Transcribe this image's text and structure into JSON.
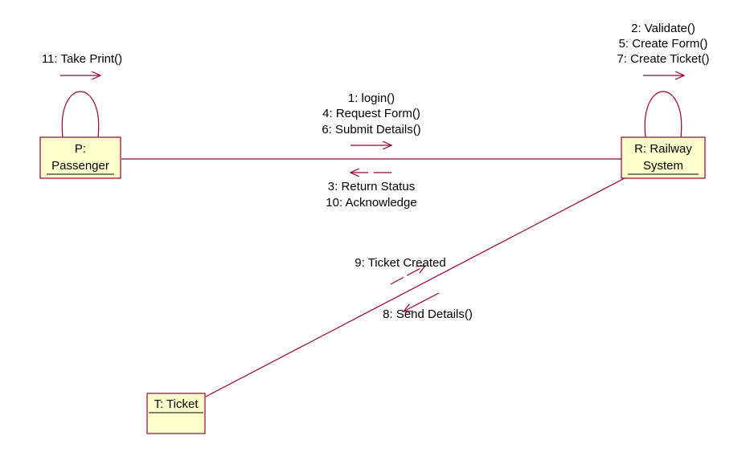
{
  "diagram": {
    "colors": {
      "line": "#990033",
      "object_fill": "#ffffcc",
      "text": "#000000",
      "background": "#ffffff"
    },
    "objects": {
      "passenger": {
        "line1": "P:",
        "line2": "Passenger"
      },
      "railway": {
        "line1": "R: Railway",
        "line2": "System"
      },
      "ticket": {
        "line1": "T: Ticket"
      }
    },
    "messages": {
      "passenger_self": [
        "11: Take Print()"
      ],
      "railway_self": [
        "2: Validate()",
        "5: Create Form()",
        "7: Create Ticket()"
      ],
      "passenger_to_railway": [
        "1: login()",
        "4: Request Form()",
        "6: Submit Details()"
      ],
      "railway_to_passenger": [
        "3: Return Status",
        "10: Acknowledge"
      ],
      "ticket_to_railway": [
        "9: Ticket Created"
      ],
      "railway_to_ticket": [
        "8: Send Details()"
      ]
    }
  }
}
